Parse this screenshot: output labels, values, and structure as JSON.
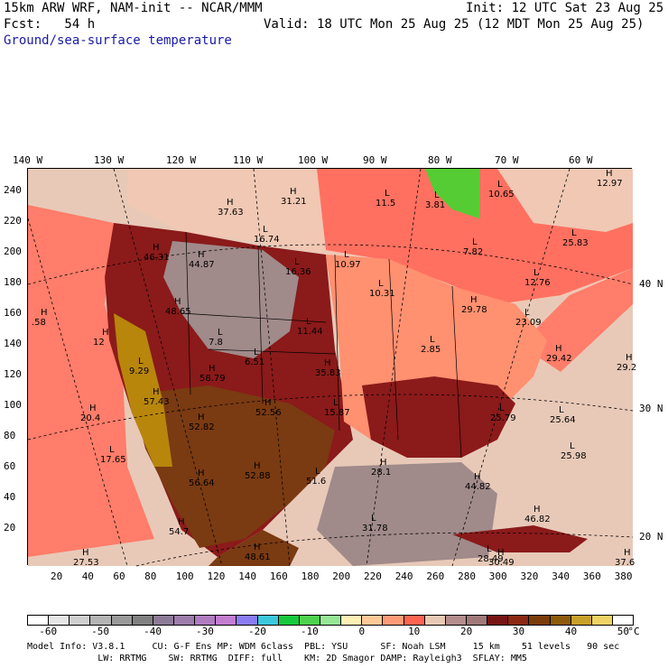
{
  "header": {
    "model": "15km ARW WRF, NAM-init -- NCAR/MMM",
    "init": "Init: 12 UTC Sat 23 Aug 25",
    "fcst_label": "Fcst:   54 h",
    "valid": "Valid: 18 UTC Mon 25 Aug 25 (12 MDT Mon 25 Aug 25)",
    "field": "Ground/sea-surface temperature"
  },
  "axes": {
    "top": [
      "140 W",
      "130 W",
      "120 W",
      "110 W",
      "100 W",
      "90 W",
      "80 W",
      "70 W",
      "60 W"
    ],
    "left": [
      "240",
      "220",
      "200",
      "180",
      "160",
      "140",
      "120",
      "100",
      "80",
      "60",
      "40",
      "20"
    ],
    "right": [
      "40 N",
      "30 N",
      "20 N"
    ],
    "bottom": [
      "20",
      "40",
      "60",
      "80",
      "100",
      "120",
      "140",
      "160",
      "180",
      "200",
      "220",
      "240",
      "260",
      "280",
      "300",
      "320",
      "340",
      "360",
      "380"
    ]
  },
  "colors": {
    "ocean_light": "#e8c9b8",
    "ocean_salmon": "#ff7d6a",
    "land_dark_red": "#8b1a1a",
    "land_brown": "#7a3a12",
    "land_mauve": "#a08a8a",
    "land_gold": "#b8860b",
    "land_pink": "#ff9070",
    "land_green": "#55cc33"
  },
  "annotations": [
    {
      "kind": "H",
      "value": "37.63"
    },
    {
      "kind": "H",
      "value": "31.21"
    },
    {
      "kind": "L",
      "value": "16.74"
    },
    {
      "kind": "L",
      "value": "11.5"
    },
    {
      "kind": "L",
      "value": "3.81"
    },
    {
      "kind": "L",
      "value": "10.65"
    },
    {
      "kind": "H",
      "value": "12.97"
    },
    {
      "kind": "H",
      "value": "46.31"
    },
    {
      "kind": "H",
      "value": "44.87"
    },
    {
      "kind": "L",
      "value": "16.36"
    },
    {
      "kind": "L",
      "value": "10.97"
    },
    {
      "kind": "L",
      "value": "7.82"
    },
    {
      "kind": "L",
      "value": "25.83"
    },
    {
      "kind": "L",
      "value": "12.76"
    },
    {
      "kind": "L",
      "value": "10.31"
    },
    {
      "kind": "H",
      "value": "29.78"
    },
    {
      "kind": "L",
      "value": "23.09"
    },
    {
      "kind": "H",
      "value": "48.65"
    },
    {
      "kind": "L",
      "value": "11.44"
    },
    {
      "kind": "L",
      "value": "2.85"
    },
    {
      "kind": "H",
      "value": "29.42"
    },
    {
      "kind": "H",
      "value": "29.2"
    },
    {
      "kind": "L",
      "value": "7.8"
    },
    {
      "kind": "L",
      "value": "6.51"
    },
    {
      "kind": "H",
      "value": "58.79"
    },
    {
      "kind": "H",
      "value": "35.83"
    },
    {
      "kind": "H",
      "value": "12"
    },
    {
      "kind": "L",
      "value": "9.29"
    },
    {
      "kind": "H",
      "value": "57.43"
    },
    {
      "kind": "L",
      "value": "15.87"
    },
    {
      "kind": "H",
      "value": "52.56"
    },
    {
      "kind": "H",
      "value": "52.82"
    },
    {
      "kind": "L",
      "value": "25.79"
    },
    {
      "kind": "L",
      "value": "25.64"
    },
    {
      "kind": "H",
      "value": "20.4"
    },
    {
      "kind": "L",
      "value": "17.65"
    },
    {
      "kind": "L",
      "value": "25.98"
    },
    {
      "kind": "H",
      "value": "52.88"
    },
    {
      "kind": "L",
      "value": "51.6"
    },
    {
      "kind": "H",
      "value": "28.1"
    },
    {
      "kind": "H",
      "value": "44.82"
    },
    {
      "kind": "H",
      "value": "56.64"
    },
    {
      "kind": "L",
      "value": "31.78"
    },
    {
      "kind": "H",
      "value": "46.82"
    },
    {
      "kind": "H",
      "value": "54.7"
    },
    {
      "kind": "H",
      "value": "27.53"
    },
    {
      "kind": "H",
      "value": "48.61"
    },
    {
      "kind": "L",
      "value": "28.49"
    },
    {
      "kind": "H",
      "value": "30.49"
    },
    {
      "kind": "H",
      "value": "37.6"
    },
    {
      "kind": "H",
      "value": ".58"
    }
  ],
  "colorbar": {
    "colors": [
      "#ffffff",
      "#e6e6e6",
      "#cfcfcf",
      "#b4b4b4",
      "#999999",
      "#808080",
      "#8c7a96",
      "#9c7caa",
      "#b07cc0",
      "#c27cd0",
      "#8a7cf0",
      "#3cc8dc",
      "#16c83c",
      "#4ed24e",
      "#96e696",
      "#fff0b4",
      "#ffc896",
      "#ff9a78",
      "#ff6450",
      "#e8c9b4",
      "#b48c8c",
      "#a07878",
      "#781414",
      "#8c2814",
      "#7a3c0a",
      "#8c5a0a",
      "#c8a028",
      "#f0d264",
      "#ffffff"
    ],
    "labels": [
      "-60",
      "-50",
      "-40",
      "-30",
      "-20",
      "-10",
      "0",
      "10",
      "20",
      "30",
      "40",
      "50"
    ],
    "unit": "°C"
  },
  "footer": {
    "line1": "Model Info: V3.8.1     CU: G-F Ens MP: WDM 6class  PBL: YSU      SF: Noah LSM     15 km    51 levels   90 sec",
    "line2": "             LW: RRTMG    SW: RRTMG  DIFF: full    KM: 2D Smagor DAMP: Rayleigh3  SFLAY: MM5"
  }
}
